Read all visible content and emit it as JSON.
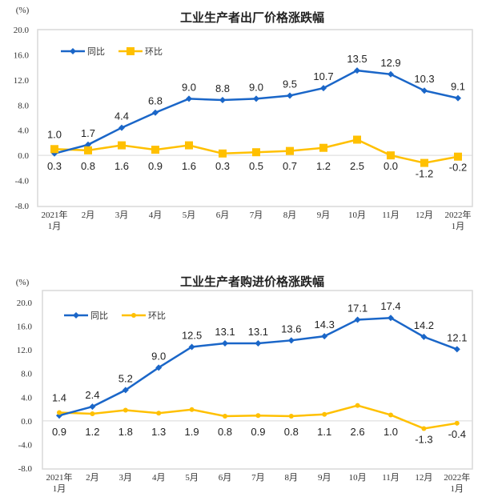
{
  "chart_data": [
    {
      "type": "line",
      "title": "工业生产者出厂价格涨跌幅",
      "unit_label": "(%)",
      "ylim": [
        -8.0,
        20.0
      ],
      "yticks": [
        "20.0",
        "16.0",
        "12.0",
        "8.0",
        "4.0",
        "0.0",
        "-4.0",
        "-8.0"
      ],
      "categories": [
        [
          "2021年",
          "1月"
        ],
        [
          "2月"
        ],
        [
          "3月"
        ],
        [
          "4月"
        ],
        [
          "5月"
        ],
        [
          "6月"
        ],
        [
          "7月"
        ],
        [
          "8月"
        ],
        [
          "9月"
        ],
        [
          "10月"
        ],
        [
          "11月"
        ],
        [
          "12月"
        ],
        [
          "2022年",
          "1月"
        ]
      ],
      "legend_position": "top-left",
      "series": [
        {
          "name": "同比",
          "color": "#1a66c8",
          "marker": "diamond",
          "values": [
            0.3,
            1.7,
            4.4,
            6.8,
            9.0,
            8.8,
            9.0,
            9.5,
            10.7,
            13.5,
            12.9,
            10.3,
            9.1
          ]
        },
        {
          "name": "环比",
          "color": "#ffc000",
          "marker": "square",
          "values": [
            1.0,
            0.8,
            1.6,
            0.9,
            1.6,
            0.3,
            0.5,
            0.7,
            1.2,
            2.5,
            0.0,
            -1.2,
            -0.2
          ]
        }
      ]
    },
    {
      "type": "line",
      "title": "工业生产者购进价格涨跌幅",
      "unit_label": "(%)",
      "ylim": [
        -8.0,
        20.0
      ],
      "yticks": [
        "20.0",
        "16.0",
        "12.0",
        "8.0",
        "4.0",
        "0.0",
        "-4.0",
        "-8.0"
      ],
      "categories": [
        [
          "2021年",
          "1月"
        ],
        [
          "2月"
        ],
        [
          "3月"
        ],
        [
          "4月"
        ],
        [
          "5月"
        ],
        [
          "6月"
        ],
        [
          "7月"
        ],
        [
          "8月"
        ],
        [
          "9月"
        ],
        [
          "10月"
        ],
        [
          "11月"
        ],
        [
          "12月"
        ],
        [
          "2022年",
          "1月"
        ]
      ],
      "legend_position": "top-left",
      "series": [
        {
          "name": "同比",
          "color": "#1a66c8",
          "marker": "diamond",
          "values": [
            0.9,
            2.4,
            5.2,
            9.0,
            12.5,
            13.1,
            13.1,
            13.6,
            14.3,
            17.1,
            17.4,
            14.2,
            12.1
          ]
        },
        {
          "name": "环比",
          "color": "#ffc000",
          "marker": "circle",
          "values": [
            1.4,
            1.2,
            1.8,
            1.3,
            1.9,
            0.8,
            0.9,
            0.8,
            1.1,
            2.6,
            1.0,
            -1.3,
            -0.4
          ]
        }
      ]
    }
  ]
}
